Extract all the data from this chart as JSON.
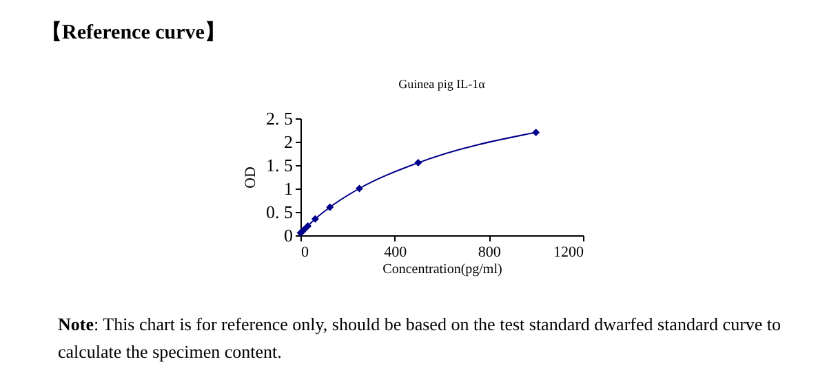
{
  "chart_data": {
    "type": "line",
    "title": "Guinea pig IL-1α",
    "xlabel": "Concentration(pg/ml)",
    "ylabel": "OD",
    "x": [
      0,
      7.8,
      15.6,
      31.25,
      62.5,
      125,
      250,
      500,
      1000
    ],
    "series": [
      {
        "color": "#00008b",
        "values": [
          0.05,
          0.08,
          0.12,
          0.2,
          0.35,
          0.6,
          1.0,
          1.55,
          2.2
        ]
      }
    ],
    "xlim": [
      0,
      1200
    ],
    "xticks": [
      0,
      400,
      800,
      1200
    ],
    "ylim": [
      0,
      2.5
    ],
    "yticks": [
      0,
      {
        "value": 0.5,
        "label": "0. 5"
      },
      1,
      {
        "value": 1.5,
        "label": "1. 5"
      },
      2,
      {
        "value": 2.5,
        "label": "2. 5"
      }
    ],
    "grid": false,
    "marker": "diamond",
    "line_style": "solid",
    "annotations": [
      "【Reference curve】",
      "Note: This chart is for reference only, should be based on the test standard dwarfed standard curve to calculate the specimen content."
    ]
  }
}
